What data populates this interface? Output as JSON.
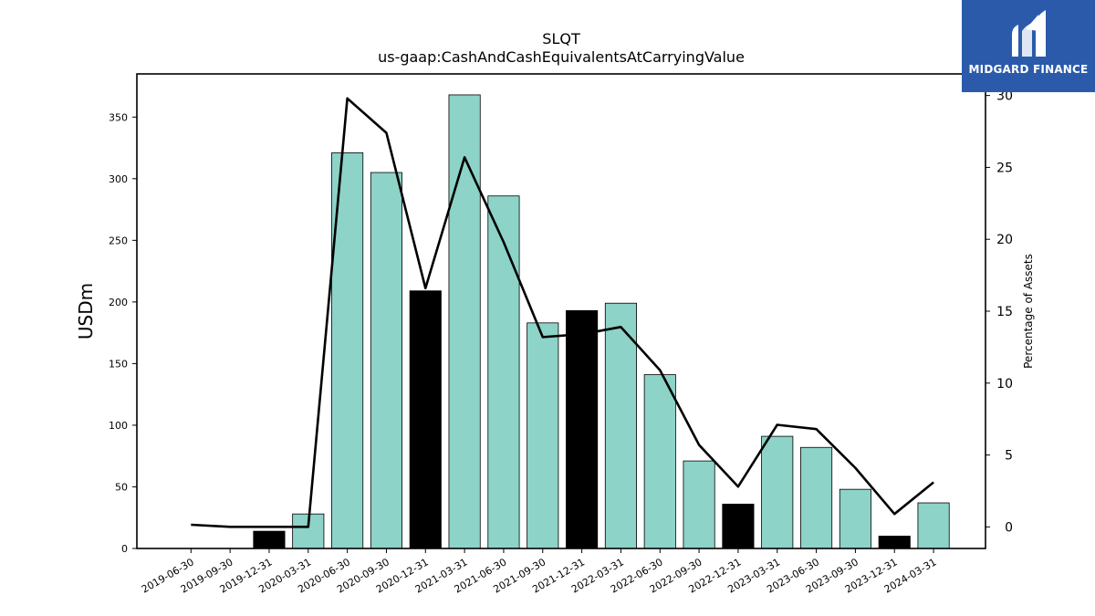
{
  "chart_data": {
    "type": "bar",
    "title": "SLQT",
    "subtitle": "us-gaap:CashAndCashEquivalentsAtCarryingValue",
    "ylabel": "USDm",
    "y2label": "Percentage of Assets",
    "categories": [
      "2019-06-30",
      "2019-09-30",
      "2019-12-31",
      "2020-03-31",
      "2020-06-30",
      "2020-09-30",
      "2020-12-31",
      "2021-03-31",
      "2021-06-30",
      "2021-09-30",
      "2021-12-31",
      "2022-03-31",
      "2022-06-30",
      "2022-09-30",
      "2022-12-31",
      "2023-03-31",
      "2023-06-30",
      "2023-09-30",
      "2023-12-31",
      "2024-03-31"
    ],
    "series": [
      {
        "type": "bar",
        "values": [
          0,
          0,
          14,
          28,
          321,
          305,
          209,
          368,
          286,
          183,
          193,
          199,
          141,
          71,
          36,
          91,
          82,
          48,
          10,
          37
        ]
      },
      {
        "type": "line",
        "axis": "right",
        "values": [
          0.15,
          0,
          0,
          0,
          29.8,
          27.4,
          16.6,
          25.7,
          19.8,
          13.2,
          13.4,
          13.9,
          10.9,
          5.7,
          2.8,
          7.1,
          6.8,
          4.1,
          0.9,
          3.1
        ]
      }
    ],
    "highlight_categories": [
      "2019-12-31",
      "2020-12-31",
      "2021-12-31",
      "2022-12-31",
      "2023-12-31"
    ],
    "ylim": [
      0,
      385
    ],
    "yticks": [
      0,
      50,
      100,
      150,
      200,
      250,
      300,
      350
    ],
    "y2lim": [
      -1.5,
      31.5
    ],
    "y2ticks": [
      0,
      5,
      10,
      15,
      20,
      25,
      30
    ],
    "grid": false,
    "colors": {
      "bar": "#8dd3c7",
      "bar_highlight": "#000000",
      "line": "#000000",
      "edge": "#000000"
    }
  },
  "brand": {
    "name": "MIDGARD FINANCE",
    "icon": "midgard-logo-icon",
    "color": "#2b5aab"
  }
}
